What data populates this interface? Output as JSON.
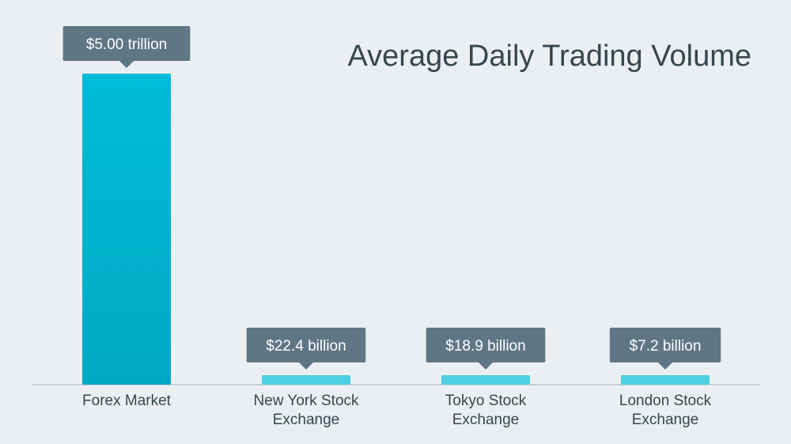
{
  "chart_data": {
    "type": "bar",
    "title": "Average Daily Trading Volume",
    "xlabel": "",
    "ylabel": "",
    "unit": "USD billions",
    "categories": [
      [
        "Forex Market"
      ],
      [
        "New York Stock",
        "Exchange"
      ],
      [
        "Tokyo Stock",
        "Exchange"
      ],
      [
        "London Stock",
        "Exchange"
      ]
    ],
    "values": [
      5000,
      22.4,
      18.9,
      7.2
    ],
    "data_labels": [
      "$5.00 trillion",
      "$22.4 billion",
      "$18.9 billion",
      "$7.2 billion"
    ],
    "display_floor": 12,
    "grid": false,
    "legend": "none"
  },
  "colors": {
    "background": "#ebeff2",
    "bar_primary": "#00a9c4",
    "bar_primary_top": "#00bcd8",
    "bar_secondary": "#4dd0e1",
    "label_box": "#5f7685",
    "label_text": "#ffffff",
    "title": "#37474f",
    "axis": "#b0bcc4",
    "category_text": "#37474f"
  }
}
